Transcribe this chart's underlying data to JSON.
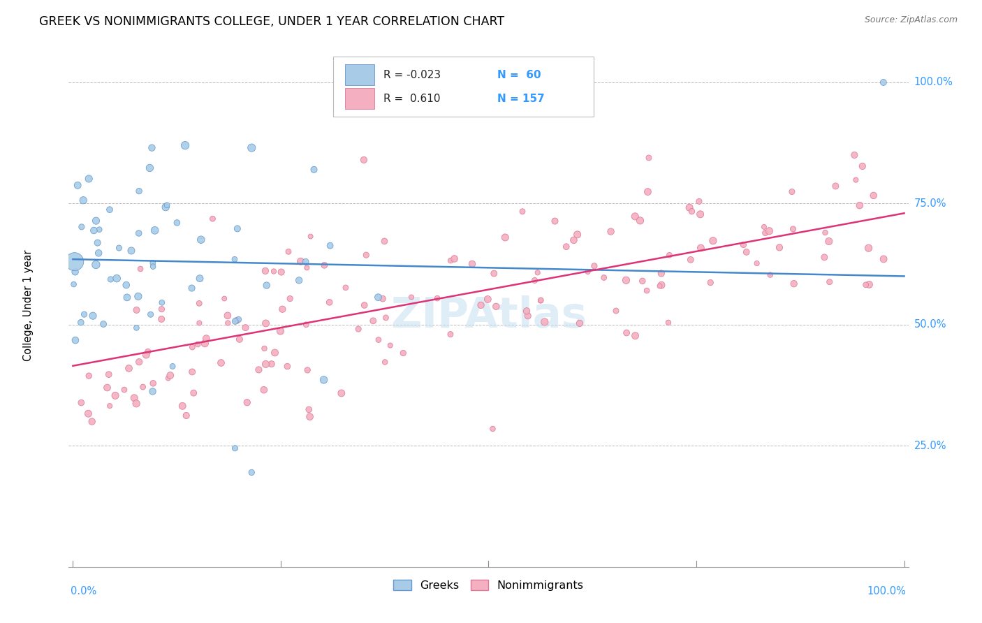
{
  "title": "GREEK VS NONIMMIGRANTS COLLEGE, UNDER 1 YEAR CORRELATION CHART",
  "source": "Source: ZipAtlas.com",
  "ylabel": "College, Under 1 year",
  "ytick_labels": [
    "25.0%",
    "50.0%",
    "75.0%",
    "100.0%"
  ],
  "ytick_values": [
    0.25,
    0.5,
    0.75,
    1.0
  ],
  "legend_label1": "Greeks",
  "legend_label2": "Nonimmigrants",
  "blue_r": -0.023,
  "pink_r": 0.61,
  "blue_n": 60,
  "pink_n": 157,
  "blue_color": "#a8cce8",
  "blue_edge": "#6699cc",
  "pink_color": "#f4b0c0",
  "pink_edge": "#dd7799",
  "blue_line_color": "#4488cc",
  "pink_line_color": "#dd3377",
  "watermark_color": "#c5dff0",
  "blue_line_y0": 0.635,
  "blue_line_y1": 0.6,
  "pink_line_y0": 0.415,
  "pink_line_y1": 0.73,
  "ymin": 0.0,
  "ymax": 1.08,
  "xmin": -0.005,
  "xmax": 1.005
}
